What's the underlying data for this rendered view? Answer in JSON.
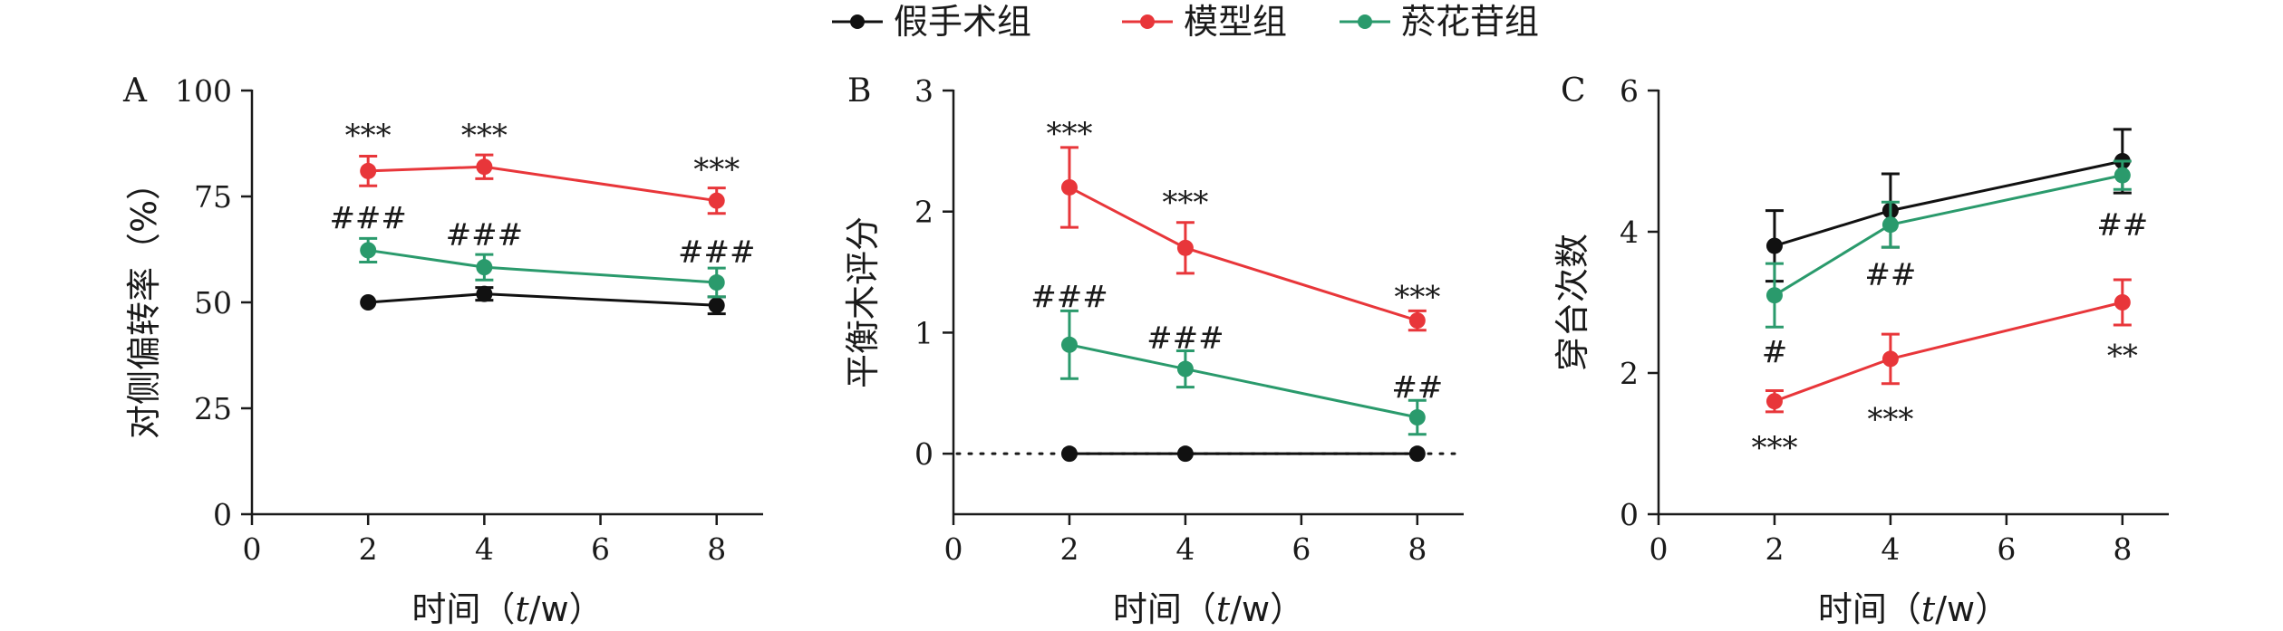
{
  "colors": {
    "sham": "#111111",
    "model": "#e8363a",
    "drug": "#2a9a6c"
  },
  "legend": [
    {
      "name": "假手术组",
      "color": "#111111"
    },
    {
      "name": "模型组",
      "color": "#e8363a"
    },
    {
      "name": "菸花苷组",
      "color": "#2a9a6c"
    }
  ],
  "chart_data": [
    {
      "type": "line",
      "panel": "A",
      "ylabel": "对侧偏转率（%）",
      "xlabel_pre": "时间（",
      "xlabel_var": "t",
      "xlabel_post": "/w）",
      "xlim": [
        0,
        8.8
      ],
      "ylim": [
        0,
        100
      ],
      "xticks": [
        "0",
        "2",
        "4",
        "6",
        "8"
      ],
      "yticks": [
        "0",
        "25",
        "50",
        "75",
        "100"
      ],
      "x": [
        2,
        4,
        8
      ],
      "series": [
        {
          "name": "假手术组",
          "values": [
            50,
            52,
            49.3
          ],
          "errors": [
            0,
            1.5,
            2
          ]
        },
        {
          "name": "模型组",
          "values": [
            81,
            82,
            74
          ],
          "errors": [
            3.5,
            2.8,
            3
          ]
        },
        {
          "name": "菸花苷组",
          "values": [
            62.3,
            58.3,
            54.7
          ],
          "errors": [
            2.8,
            3,
            3.4
          ]
        }
      ],
      "annotations": [
        {
          "text": "***",
          "x": 2,
          "y": 89.5,
          "series": "模型组"
        },
        {
          "text": "***",
          "x": 4,
          "y": 89.5,
          "series": "模型组"
        },
        {
          "text": "***",
          "x": 8,
          "y": 81.5,
          "series": "模型组"
        },
        {
          "text": "###",
          "x": 2,
          "y": 70,
          "series": "菸花苷组"
        },
        {
          "text": "###",
          "x": 4,
          "y": 66,
          "series": "菸花苷组"
        },
        {
          "text": "###",
          "x": 8,
          "y": 62,
          "series": "菸花苷组"
        }
      ]
    },
    {
      "type": "line",
      "panel": "B",
      "ylabel": "平衡木评分",
      "xlabel_pre": "时间（",
      "xlabel_var": "t",
      "xlabel_post": "/w）",
      "xlim": [
        0,
        8.8
      ],
      "ylim": [
        -0.5,
        3
      ],
      "xticks": [
        "0",
        "2",
        "4",
        "6",
        "8"
      ],
      "yticks": [
        "0",
        "1",
        "2",
        "3"
      ],
      "x": [
        2,
        4,
        8
      ],
      "baseline": 0,
      "series": [
        {
          "name": "假手术组",
          "values": [
            0,
            0,
            0
          ],
          "errors": [
            0,
            0,
            0
          ]
        },
        {
          "name": "模型组",
          "values": [
            2.2,
            1.7,
            1.1
          ],
          "errors": [
            0.33,
            0.21,
            0.08
          ]
        },
        {
          "name": "菸花苷组",
          "values": [
            0.9,
            0.7,
            0.3
          ],
          "errors": [
            0.28,
            0.15,
            0.14
          ]
        }
      ],
      "annotations": [
        {
          "text": "***",
          "x": 2,
          "y": 2.65,
          "series": "模型组"
        },
        {
          "text": "***",
          "x": 4,
          "y": 2.08,
          "series": "模型组"
        },
        {
          "text": "***",
          "x": 8,
          "y": 1.3,
          "series": "模型组"
        },
        {
          "text": "###",
          "x": 2,
          "y": 1.3,
          "series": "菸花苷组"
        },
        {
          "text": "###",
          "x": 4,
          "y": 0.96,
          "series": "菸花苷组"
        },
        {
          "text": "##",
          "x": 8,
          "y": 0.55,
          "series": "菸花苷组"
        }
      ]
    },
    {
      "type": "line",
      "panel": "C",
      "ylabel": "穿台次数",
      "xlabel_pre": "时间（",
      "xlabel_var": "t",
      "xlabel_post": "/w）",
      "xlim": [
        0,
        8.8
      ],
      "ylim": [
        0,
        6
      ],
      "xticks": [
        "0",
        "2",
        "4",
        "6",
        "8"
      ],
      "yticks": [
        "0",
        "2",
        "4",
        "6"
      ],
      "x": [
        2,
        4,
        8
      ],
      "series": [
        {
          "name": "假手术组",
          "values": [
            3.8,
            4.3,
            5.0
          ],
          "errors": [
            0.5,
            0.52,
            0.45
          ]
        },
        {
          "name": "模型组",
          "values": [
            1.6,
            2.2,
            3.0
          ],
          "errors": [
            0.15,
            0.35,
            0.32
          ]
        },
        {
          "name": "菸花苷组",
          "values": [
            3.1,
            4.1,
            4.8
          ],
          "errors": [
            0.45,
            0.32,
            0.2
          ]
        }
      ],
      "annotations": [
        {
          "text": "#",
          "x": 2,
          "y": 2.3,
          "series": "菸花苷组"
        },
        {
          "text": "##",
          "x": 4,
          "y": 3.4,
          "series": "菸花苷组"
        },
        {
          "text": "##",
          "x": 8,
          "y": 4.1,
          "series": "菸花苷组"
        },
        {
          "text": "***",
          "x": 2,
          "y": 0.95,
          "series": "模型组"
        },
        {
          "text": "***",
          "x": 4,
          "y": 1.35,
          "series": "模型组"
        },
        {
          "text": "**",
          "x": 8,
          "y": 2.25,
          "series": "模型组"
        }
      ]
    }
  ]
}
